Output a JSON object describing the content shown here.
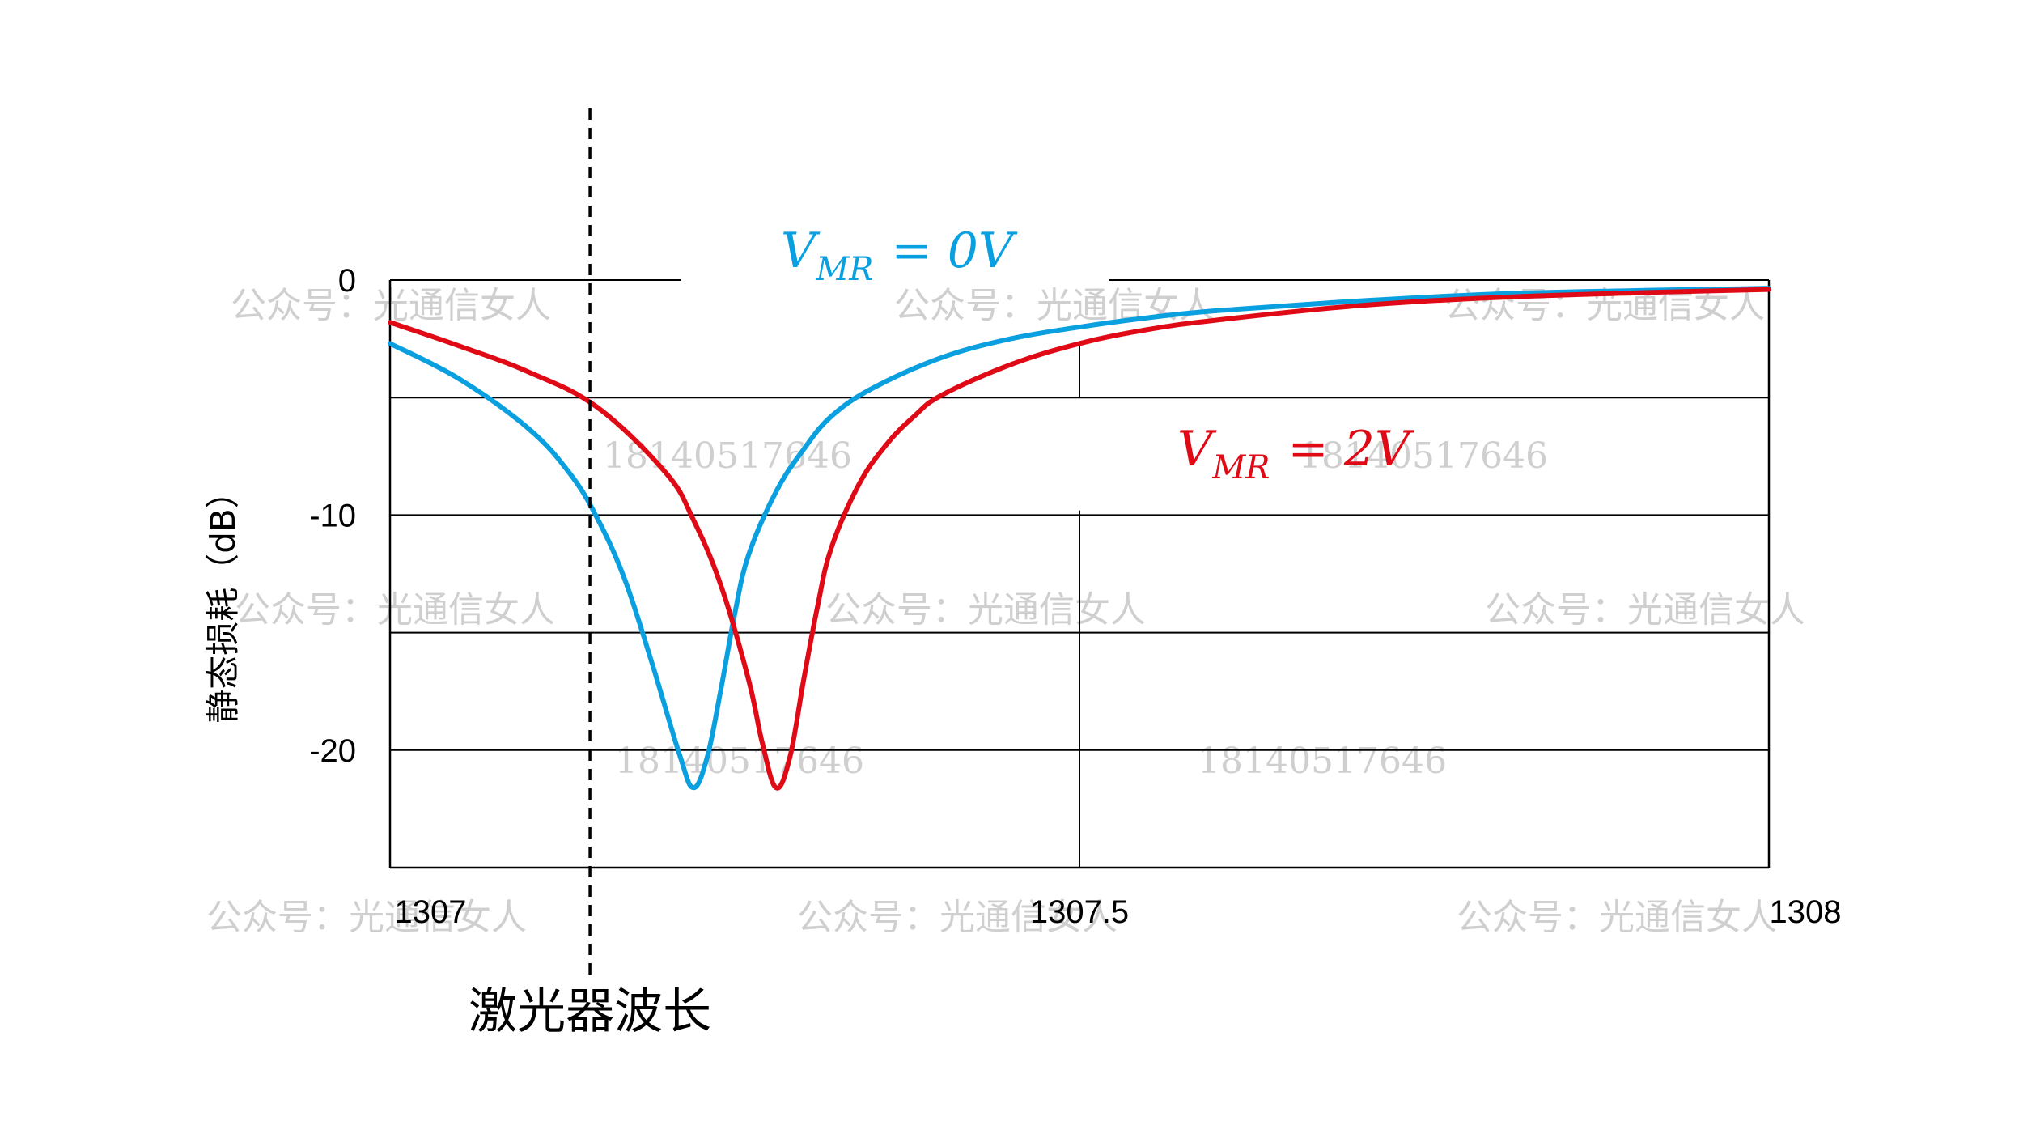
{
  "chart_data": {
    "type": "line",
    "xlabel": "",
    "ylabel": "静态损耗（dB）",
    "xlim": [
      1307,
      1308
    ],
    "ylim": [
      -25,
      0
    ],
    "x_ticks": [
      "1307",
      "1307.5",
      "1308"
    ],
    "y_ticks": [
      "0",
      "-10",
      "-20"
    ],
    "grid": "horizontal lines at -5, -10, -15, -20",
    "laser_wavelength": {
      "x": 1307.145,
      "label": "激光器波长"
    },
    "series": [
      {
        "name_prefix": "V",
        "name_sub": "MR",
        "name_suffix": "= 0V",
        "color": "#0aa0e0",
        "x": [
          1307.0,
          1307.05,
          1307.1,
          1307.13,
          1307.15,
          1307.17,
          1307.19,
          1307.21,
          1307.22,
          1307.23,
          1307.24,
          1307.25,
          1307.26,
          1307.28,
          1307.3,
          1307.32,
          1307.35,
          1307.4,
          1307.45,
          1307.5,
          1307.55,
          1307.6,
          1307.7,
          1307.8,
          1307.9,
          1308.0
        ],
        "values": [
          -2.7,
          -4.2,
          -6.3,
          -8.2,
          -10.1,
          -12.7,
          -16.3,
          -20.2,
          -21.6,
          -20.3,
          -17.4,
          -14.2,
          -11.7,
          -9.0,
          -7.2,
          -5.8,
          -4.6,
          -3.3,
          -2.5,
          -2.0,
          -1.6,
          -1.3,
          -0.9,
          -0.6,
          -0.45,
          -0.35
        ]
      },
      {
        "name_prefix": "V",
        "name_sub": "MR",
        "name_suffix": "= 2V",
        "color": "#e00a16",
        "x": [
          1307.0,
          1307.05,
          1307.1,
          1307.15,
          1307.2,
          1307.22,
          1307.24,
          1307.26,
          1307.27,
          1307.28,
          1307.29,
          1307.3,
          1307.31,
          1307.32,
          1307.34,
          1307.36,
          1307.38,
          1307.4,
          1307.45,
          1307.5,
          1307.55,
          1307.6,
          1307.7,
          1307.8,
          1307.9,
          1308.0
        ],
        "values": [
          -1.8,
          -2.8,
          -3.9,
          -5.4,
          -8.2,
          -10.2,
          -13.0,
          -17.0,
          -19.7,
          -21.6,
          -20.3,
          -17.0,
          -13.9,
          -11.4,
          -8.7,
          -7.0,
          -5.8,
          -4.9,
          -3.6,
          -2.7,
          -2.1,
          -1.7,
          -1.1,
          -0.75,
          -0.55,
          -0.4
        ]
      }
    ]
  },
  "watermarks": [
    "公众号：光通信女人",
    "18140517646"
  ]
}
